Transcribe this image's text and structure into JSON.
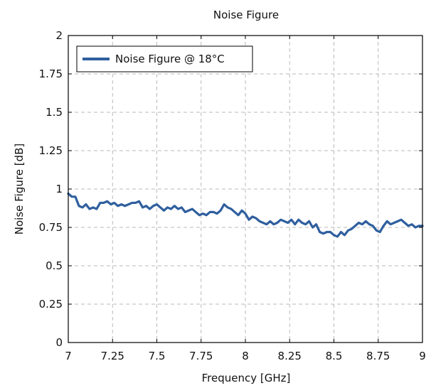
{
  "chart_data": {
    "type": "line",
    "title": "Noise Figure",
    "xlabel": "Frequency [GHz]",
    "ylabel": "Noise Figure [dB]",
    "xlim": [
      7,
      9
    ],
    "ylim": [
      0,
      2
    ],
    "xticks": [
      7,
      7.25,
      7.5,
      7.75,
      8,
      8.25,
      8.5,
      8.75,
      9
    ],
    "xtick_labels": [
      "7",
      "7.25",
      "7.5",
      "7.75",
      "8",
      "8.25",
      "8.5",
      "8.75",
      "9"
    ],
    "yticks": [
      0,
      0.25,
      0.5,
      0.75,
      1,
      1.25,
      1.5,
      1.75,
      2
    ],
    "ytick_labels": [
      "0",
      "0.25",
      "0.5",
      "0.75",
      "1",
      "1.25",
      "1.5",
      "1.75",
      "2"
    ],
    "grid": true,
    "legend": {
      "placement": "top-left",
      "entries": [
        "Noise Figure @ 18°C"
      ]
    },
    "series": [
      {
        "name": "Noise Figure @ 18°C",
        "color": "#2f5f9e",
        "x": [
          7.0,
          7.02,
          7.04,
          7.06,
          7.08,
          7.1,
          7.12,
          7.14,
          7.16,
          7.18,
          7.2,
          7.22,
          7.24,
          7.26,
          7.28,
          7.3,
          7.32,
          7.34,
          7.36,
          7.38,
          7.4,
          7.42,
          7.44,
          7.46,
          7.48,
          7.5,
          7.52,
          7.54,
          7.56,
          7.58,
          7.6,
          7.62,
          7.64,
          7.66,
          7.68,
          7.7,
          7.72,
          7.74,
          7.76,
          7.78,
          7.8,
          7.82,
          7.84,
          7.86,
          7.88,
          7.9,
          7.92,
          7.94,
          7.96,
          7.98,
          8.0,
          8.02,
          8.04,
          8.06,
          8.08,
          8.1,
          8.12,
          8.14,
          8.16,
          8.18,
          8.2,
          8.22,
          8.24,
          8.26,
          8.28,
          8.3,
          8.32,
          8.34,
          8.36,
          8.38,
          8.4,
          8.42,
          8.44,
          8.46,
          8.48,
          8.5,
          8.52,
          8.54,
          8.56,
          8.58,
          8.6,
          8.62,
          8.64,
          8.66,
          8.68,
          8.7,
          8.72,
          8.74,
          8.76,
          8.78,
          8.8,
          8.82,
          8.84,
          8.86,
          8.88,
          8.9,
          8.92,
          8.94,
          8.96,
          8.98,
          9.0
        ],
        "values": [
          0.97,
          0.95,
          0.95,
          0.89,
          0.88,
          0.9,
          0.87,
          0.88,
          0.87,
          0.91,
          0.91,
          0.92,
          0.9,
          0.91,
          0.89,
          0.9,
          0.89,
          0.9,
          0.91,
          0.91,
          0.92,
          0.88,
          0.89,
          0.87,
          0.89,
          0.9,
          0.88,
          0.86,
          0.88,
          0.87,
          0.89,
          0.87,
          0.88,
          0.85,
          0.86,
          0.87,
          0.85,
          0.83,
          0.84,
          0.83,
          0.85,
          0.85,
          0.84,
          0.86,
          0.9,
          0.88,
          0.87,
          0.85,
          0.83,
          0.86,
          0.84,
          0.8,
          0.82,
          0.81,
          0.79,
          0.78,
          0.77,
          0.79,
          0.77,
          0.78,
          0.8,
          0.79,
          0.78,
          0.8,
          0.77,
          0.8,
          0.78,
          0.77,
          0.79,
          0.75,
          0.77,
          0.72,
          0.71,
          0.72,
          0.72,
          0.7,
          0.69,
          0.72,
          0.7,
          0.73,
          0.74,
          0.76,
          0.78,
          0.77,
          0.79,
          0.77,
          0.76,
          0.73,
          0.72,
          0.76,
          0.79,
          0.77,
          0.78,
          0.79,
          0.8,
          0.78,
          0.76,
          0.77,
          0.75,
          0.76,
          0.76
        ]
      }
    ]
  }
}
